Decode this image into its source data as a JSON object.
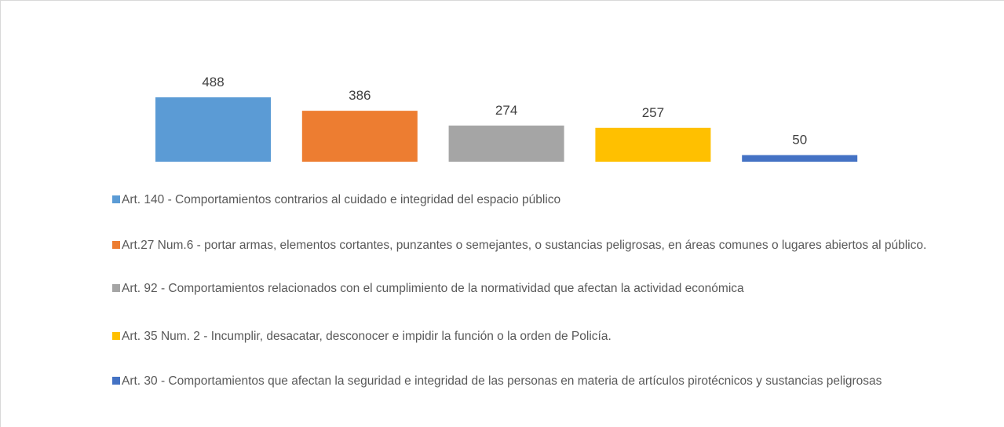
{
  "chart_data": {
    "type": "bar",
    "categories": [
      null
    ],
    "series": [
      {
        "name": "Art. 140 - Comportamientos contrarios al cuidado e integridad del espacio público",
        "color": "#5b9bd5",
        "values": [
          488
        ]
      },
      {
        "name": "Art.27 Num.6 - portar armas, elementos cortantes, punzantes o semejantes, o sustancias peligrosas, en áreas comunes o lugares abiertos al público.",
        "color": "#ed7d31",
        "values": [
          386
        ]
      },
      {
        "name": "Art. 92 - Comportamientos relacionados con el cumplimiento de la normatividad que afectan la actividad económica",
        "color": "#a5a5a5",
        "values": [
          274
        ]
      },
      {
        "name": "Art. 35 Num. 2 - Incumplir, desacatar, desconocer e impidir la función o la orden de Policía.",
        "color": "#ffc000",
        "values": [
          257
        ]
      },
      {
        "name": "Art. 30 - Comportamientos que afectan la seguridad e integridad de las personas en materia de artículos pirotécnicos y sustancias peligrosas",
        "color": "#4472c4",
        "values": [
          50
        ]
      }
    ],
    "legend": "bottom"
  }
}
